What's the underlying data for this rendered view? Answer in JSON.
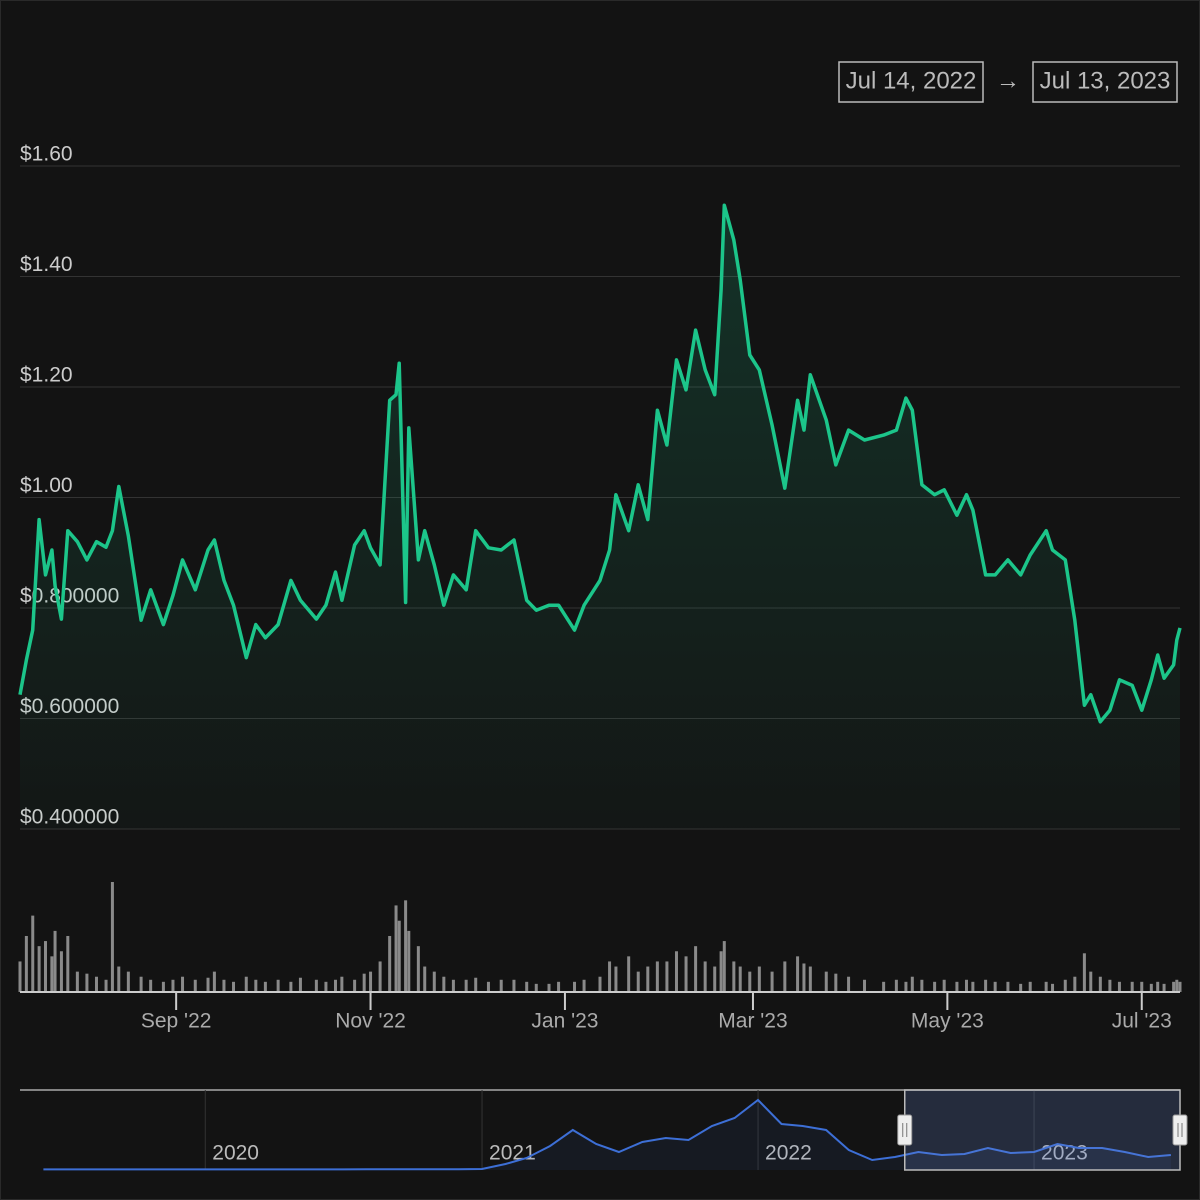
{
  "chart_data": {
    "type": "line",
    "range": {
      "from": "Jul 14, 2022",
      "separator": "→",
      "to": "Jul 13, 2023"
    },
    "color": "#1cc58a",
    "volume_color": "#8a8a8a",
    "grid": true,
    "xlim": [
      "2022-07-14",
      "2023-07-13"
    ],
    "xticks": [
      {
        "value": "2022-09-01",
        "label": "Sep '22"
      },
      {
        "value": "2022-11-01",
        "label": "Nov '22"
      },
      {
        "value": "2023-01-01",
        "label": "Jan '23"
      },
      {
        "value": "2023-03-01",
        "label": "Mar '23"
      },
      {
        "value": "2023-05-01",
        "label": "May '23"
      },
      {
        "value": "2023-07-01",
        "label": "Jul '23"
      }
    ],
    "ylim": [
      0.4,
      1.6
    ],
    "yticks": [
      {
        "value": 0.4,
        "label": "$0.400000"
      },
      {
        "value": 0.6,
        "label": "$0.600000"
      },
      {
        "value": 0.8,
        "label": "$0.800000"
      },
      {
        "value": 1.0,
        "label": "$1.00"
      },
      {
        "value": 1.2,
        "label": "$1.20"
      },
      {
        "value": 1.4,
        "label": "$1.40"
      },
      {
        "value": 1.6,
        "label": "$1.60"
      }
    ],
    "x": [
      "2022-07-14",
      "2022-07-16",
      "2022-07-18",
      "2022-07-20",
      "2022-07-22",
      "2022-07-24",
      "2022-07-25",
      "2022-07-27",
      "2022-07-29",
      "2022-08-01",
      "2022-08-04",
      "2022-08-07",
      "2022-08-10",
      "2022-08-12",
      "2022-08-14",
      "2022-08-17",
      "2022-08-21",
      "2022-08-24",
      "2022-08-28",
      "2022-08-31",
      "2022-09-03",
      "2022-09-07",
      "2022-09-11",
      "2022-09-13",
      "2022-09-16",
      "2022-09-19",
      "2022-09-23",
      "2022-09-26",
      "2022-09-29",
      "2022-10-03",
      "2022-10-07",
      "2022-10-10",
      "2022-10-15",
      "2022-10-18",
      "2022-10-21",
      "2022-10-23",
      "2022-10-27",
      "2022-10-30",
      "2022-11-01",
      "2022-11-04",
      "2022-11-07",
      "2022-11-09",
      "2022-11-10",
      "2022-11-12",
      "2022-11-13",
      "2022-11-16",
      "2022-11-18",
      "2022-11-21",
      "2022-11-24",
      "2022-11-27",
      "2022-12-01",
      "2022-12-04",
      "2022-12-08",
      "2022-12-12",
      "2022-12-16",
      "2022-12-20",
      "2022-12-23",
      "2022-12-27",
      "2022-12-30",
      "2023-01-04",
      "2023-01-07",
      "2023-01-12",
      "2023-01-15",
      "2023-01-17",
      "2023-01-21",
      "2023-01-24",
      "2023-01-27",
      "2023-01-30",
      "2023-02-02",
      "2023-02-05",
      "2023-02-08",
      "2023-02-11",
      "2023-02-14",
      "2023-02-17",
      "2023-02-19",
      "2023-02-20",
      "2023-02-23",
      "2023-02-25",
      "2023-02-28",
      "2023-03-03",
      "2023-03-07",
      "2023-03-11",
      "2023-03-15",
      "2023-03-17",
      "2023-03-19",
      "2023-03-24",
      "2023-03-27",
      "2023-03-31",
      "2023-04-05",
      "2023-04-11",
      "2023-04-15",
      "2023-04-18",
      "2023-04-20",
      "2023-04-23",
      "2023-04-27",
      "2023-04-30",
      "2023-05-04",
      "2023-05-07",
      "2023-05-09",
      "2023-05-13",
      "2023-05-16",
      "2023-05-20",
      "2023-05-24",
      "2023-05-27",
      "2023-06-01",
      "2023-06-03",
      "2023-06-07",
      "2023-06-10",
      "2023-06-13",
      "2023-06-15",
      "2023-06-18",
      "2023-06-21",
      "2023-06-24",
      "2023-06-28",
      "2023-07-01",
      "2023-07-04",
      "2023-07-06",
      "2023-07-08",
      "2023-07-11",
      "2023-07-12",
      "2023-07-13"
    ],
    "values": [
      0.643,
      0.706,
      0.76,
      0.96,
      0.86,
      0.905,
      0.84,
      0.78,
      0.94,
      0.92,
      0.887,
      0.92,
      0.91,
      0.94,
      1.02,
      0.93,
      0.778,
      0.833,
      0.77,
      0.823,
      0.887,
      0.833,
      0.905,
      0.923,
      0.85,
      0.805,
      0.71,
      0.77,
      0.746,
      0.77,
      0.85,
      0.814,
      0.78,
      0.805,
      0.865,
      0.814,
      0.914,
      0.94,
      0.909,
      0.878,
      1.176,
      1.186,
      1.243,
      0.81,
      1.126,
      0.887,
      0.94,
      0.878,
      0.805,
      0.86,
      0.833,
      0.94,
      0.909,
      0.905,
      0.923,
      0.814,
      0.796,
      0.805,
      0.805,
      0.76,
      0.805,
      0.85,
      0.905,
      1.005,
      0.94,
      1.023,
      0.96,
      1.158,
      1.095,
      1.249,
      1.195,
      1.303,
      1.231,
      1.186,
      1.376,
      1.529,
      1.466,
      1.394,
      1.258,
      1.231,
      1.131,
      1.017,
      1.176,
      1.122,
      1.222,
      1.14,
      1.059,
      1.122,
      1.104,
      1.113,
      1.122,
      1.18,
      1.158,
      1.023,
      1.005,
      1.014,
      0.968,
      1.005,
      0.977,
      0.86,
      0.86,
      0.887,
      0.86,
      0.896,
      0.94,
      0.905,
      0.887,
      0.778,
      0.624,
      0.643,
      0.594,
      0.615,
      0.67,
      0.66,
      0.615,
      0.67,
      0.715,
      0.673,
      0.697,
      0.742,
      0.764
    ],
    "volume": [
      30,
      55,
      75,
      45,
      50,
      35,
      60,
      40,
      55,
      20,
      18,
      15,
      12,
      108,
      25,
      20,
      15,
      12,
      10,
      12,
      15,
      12,
      14,
      20,
      12,
      10,
      15,
      12,
      10,
      12,
      10,
      14,
      12,
      10,
      12,
      15,
      12,
      18,
      20,
      30,
      55,
      85,
      70,
      90,
      60,
      45,
      25,
      20,
      15,
      12,
      12,
      14,
      10,
      12,
      12,
      10,
      8,
      8,
      10,
      10,
      12,
      15,
      30,
      25,
      35,
      20,
      25,
      30,
      30,
      40,
      35,
      45,
      30,
      25,
      40,
      50,
      30,
      25,
      20,
      25,
      20,
      30,
      35,
      28,
      25,
      20,
      18,
      15,
      12,
      10,
      12,
      10,
      15,
      12,
      10,
      12,
      10,
      12,
      10,
      12,
      10,
      10,
      8,
      10,
      10,
      8,
      12,
      15,
      38,
      20,
      15,
      12,
      10,
      10,
      10,
      8,
      10,
      8,
      10,
      12,
      10
    ],
    "navigator": {
      "color": "#3d6fd6",
      "xlim": [
        "2019-05-01",
        "2023-07-13"
      ],
      "ylim": [
        0,
        4
      ],
      "xticks": [
        {
          "value": "2020-01-01",
          "label": "2020"
        },
        {
          "value": "2021-01-01",
          "label": "2021"
        },
        {
          "value": "2022-01-01",
          "label": "2022"
        },
        {
          "value": "2023-01-01",
          "label": "2023"
        }
      ],
      "x": [
        "2019-06-01",
        "2019-07-01",
        "2019-08-01",
        "2019-09-01",
        "2019-10-01",
        "2019-11-01",
        "2019-12-01",
        "2020-01-01",
        "2020-02-01",
        "2020-03-01",
        "2020-04-01",
        "2020-05-01",
        "2020-06-01",
        "2020-07-01",
        "2020-08-01",
        "2020-09-01",
        "2020-10-01",
        "2020-11-01",
        "2020-12-01",
        "2021-01-01",
        "2021-02-01",
        "2021-03-01",
        "2021-04-01",
        "2021-05-01",
        "2021-06-01",
        "2021-07-01",
        "2021-08-01",
        "2021-09-01",
        "2021-10-01",
        "2021-11-01",
        "2021-12-01",
        "2022-01-01",
        "2022-02-01",
        "2022-03-01",
        "2022-04-01",
        "2022-05-01",
        "2022-06-01",
        "2022-07-01",
        "2022-08-01",
        "2022-09-01",
        "2022-10-01",
        "2022-11-01",
        "2022-12-01",
        "2023-01-01",
        "2023-02-01",
        "2023-03-01",
        "2023-04-01",
        "2023-05-01",
        "2023-06-01",
        "2023-07-01"
      ],
      "values": [
        0.03,
        0.03,
        0.03,
        0.03,
        0.03,
        0.03,
        0.03,
        0.03,
        0.03,
        0.03,
        0.03,
        0.03,
        0.03,
        0.03,
        0.04,
        0.04,
        0.04,
        0.04,
        0.04,
        0.05,
        0.3,
        0.6,
        1.2,
        2.0,
        1.3,
        0.9,
        1.4,
        1.6,
        1.5,
        2.2,
        2.6,
        3.5,
        2.3,
        2.2,
        2.0,
        1.0,
        0.5,
        0.65,
        0.9,
        0.75,
        0.8,
        1.1,
        0.85,
        0.9,
        1.3,
        1.1,
        1.1,
        0.9,
        0.65,
        0.75
      ]
    }
  }
}
